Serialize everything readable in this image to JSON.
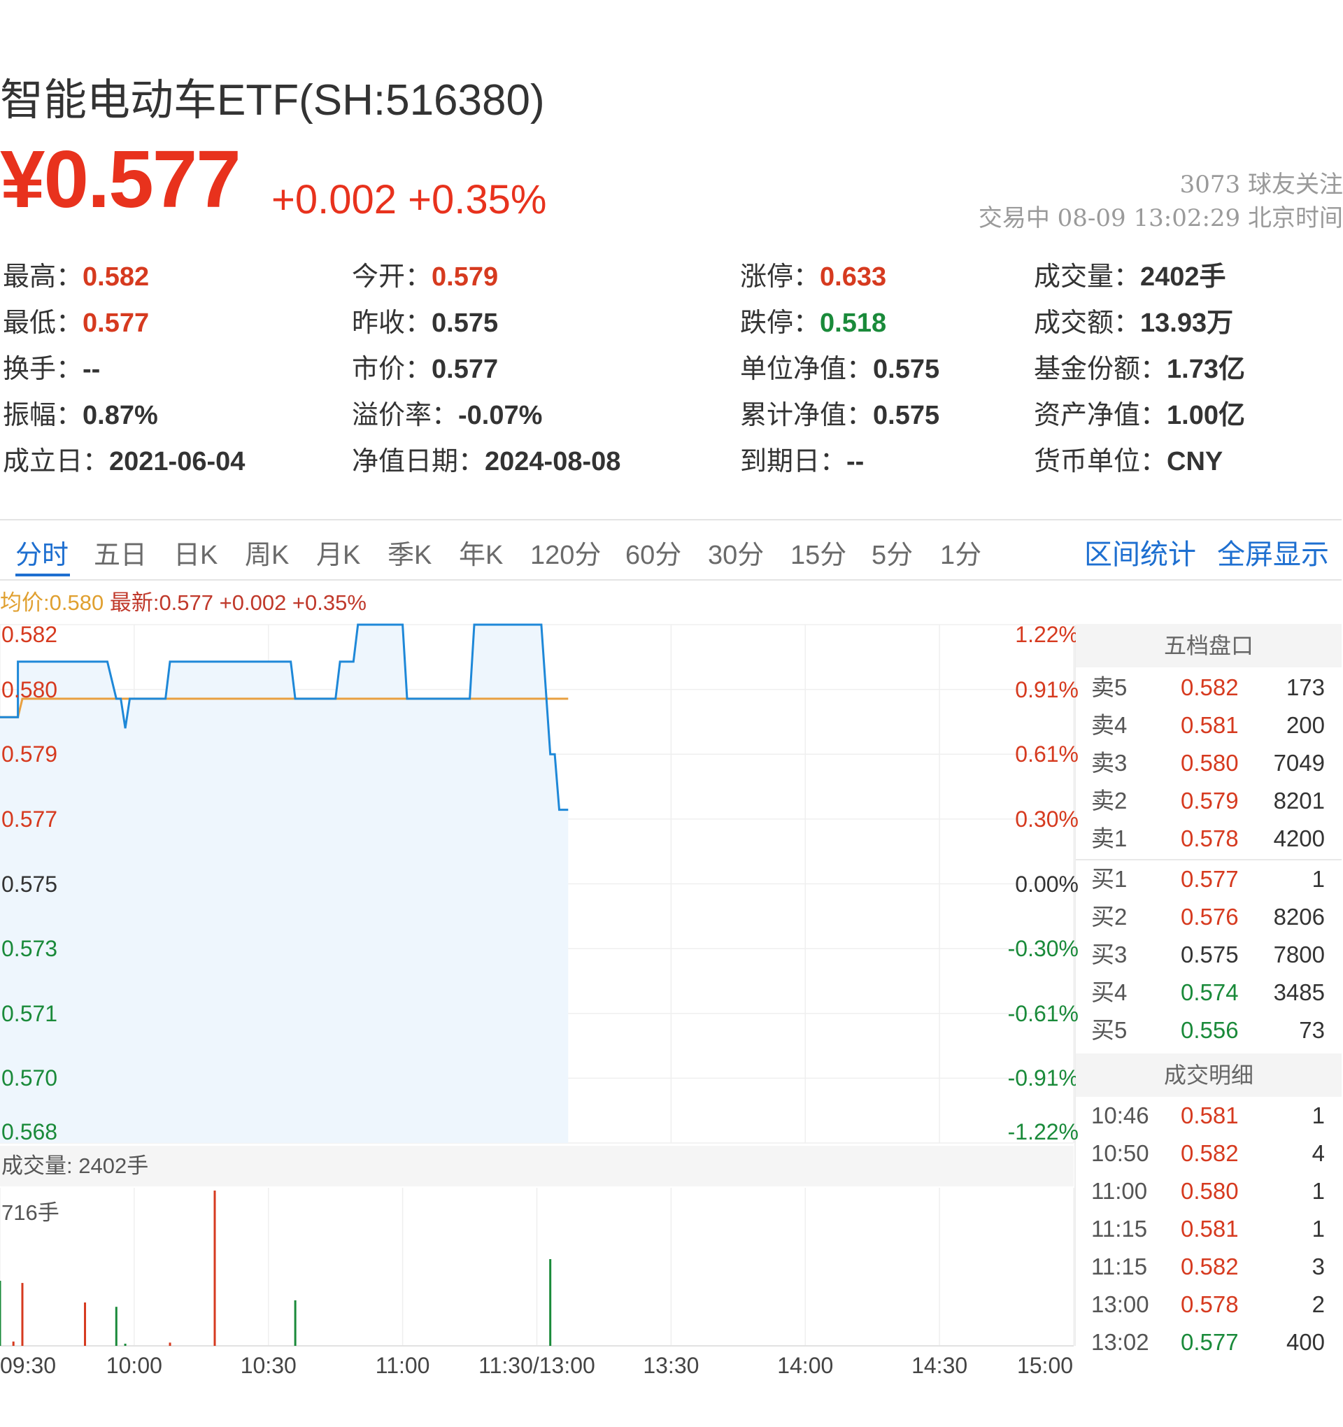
{
  "header": {
    "title": "智能电动车ETF(SH:516380)",
    "price": "¥0.577",
    "change": "+0.002 +0.35%",
    "followers": "3073 球友关注",
    "status": "交易中 08-09 13:02:29 北京时间"
  },
  "stats": [
    {
      "label": "最高：",
      "value": "0.582",
      "color": "red"
    },
    {
      "label": "今开：",
      "value": "0.579",
      "color": "red"
    },
    {
      "label": "涨停：",
      "value": "0.633",
      "color": "red"
    },
    {
      "label": "成交量：",
      "value": "2402手",
      "color": "dark"
    },
    {
      "label": "最低：",
      "value": "0.577",
      "color": "red"
    },
    {
      "label": "昨收：",
      "value": "0.575",
      "color": "dark"
    },
    {
      "label": "跌停：",
      "value": "0.518",
      "color": "green"
    },
    {
      "label": "成交额：",
      "value": "13.93万",
      "color": "dark"
    },
    {
      "label": "换手：",
      "value": "--",
      "color": "dark"
    },
    {
      "label": "市价：",
      "value": "0.577",
      "color": "dark"
    },
    {
      "label": "单位净值：",
      "value": "0.575",
      "color": "dark"
    },
    {
      "label": "基金份额：",
      "value": "1.73亿",
      "color": "dark"
    },
    {
      "label": "振幅：",
      "value": "0.87%",
      "color": "dark"
    },
    {
      "label": "溢价率：",
      "value": "-0.07%",
      "color": "dark"
    },
    {
      "label": "累计净值：",
      "value": "0.575",
      "color": "dark"
    },
    {
      "label": "资产净值：",
      "value": "1.00亿",
      "color": "dark"
    },
    {
      "label": "成立日：",
      "value": "2021-06-04",
      "color": "dark"
    },
    {
      "label": "净值日期：",
      "value": "2024-08-08",
      "color": "dark"
    },
    {
      "label": "到期日：",
      "value": "--",
      "color": "dark"
    },
    {
      "label": "货币单位：",
      "value": "CNY",
      "color": "dark"
    }
  ],
  "tabs": [
    "分时",
    "五日",
    "日K",
    "周K",
    "月K",
    "季K",
    "年K",
    "120分",
    "60分",
    "30分",
    "15分",
    "5分",
    "1分"
  ],
  "active_tab": "分时",
  "actions": [
    "区间统计",
    "全屏显示"
  ],
  "legend": {
    "avg": "均价:0.580",
    "latest": "最新:0.577  +0.002  +0.35%"
  },
  "colors": {
    "up": "#d63a1f",
    "down": "#1a8a3a",
    "price_line": "#1e88d8",
    "avg_line": "#e8a040",
    "accent": "#1e6fd0"
  },
  "chart_data": {
    "type": "line",
    "y_left_labels": [
      "0.582",
      "0.580",
      "0.579",
      "0.577",
      "0.575",
      "0.573",
      "0.571",
      "0.570",
      "0.568"
    ],
    "y_right_labels": [
      "1.22%",
      "0.91%",
      "0.61%",
      "0.30%",
      "0.00%",
      "-0.30%",
      "-0.61%",
      "-0.91%",
      "-1.22%"
    ],
    "ylim": [
      0.568,
      0.582
    ],
    "prev_close": 0.575,
    "x_labels": [
      "09:30",
      "10:00",
      "10:30",
      "11:00",
      "11:30/13:00",
      "13:30",
      "14:00",
      "14:30",
      "15:00"
    ],
    "total_minutes": 240,
    "series": [
      {
        "kind": "price",
        "points": [
          [
            0,
            0.5795
          ],
          [
            4,
            0.5795
          ],
          [
            4,
            0.581
          ],
          [
            24,
            0.581
          ],
          [
            26,
            0.58
          ],
          [
            27,
            0.58
          ],
          [
            28,
            0.5792
          ],
          [
            29,
            0.58
          ],
          [
            37,
            0.58
          ],
          [
            38,
            0.581
          ],
          [
            65,
            0.581
          ],
          [
            66,
            0.58
          ],
          [
            75,
            0.58
          ],
          [
            76,
            0.581
          ],
          [
            79,
            0.581
          ],
          [
            80,
            0.582
          ],
          [
            90,
            0.582
          ],
          [
            91,
            0.58
          ],
          [
            105,
            0.58
          ],
          [
            106,
            0.582
          ],
          [
            121,
            0.582
          ],
          [
            123,
            0.5785
          ],
          [
            124,
            0.5785
          ],
          [
            125,
            0.577
          ],
          [
            127,
            0.577
          ]
        ]
      },
      {
        "kind": "avg",
        "points": [
          [
            0,
            0.5795
          ],
          [
            4,
            0.5795
          ],
          [
            5,
            0.58
          ],
          [
            47,
            0.58
          ],
          [
            48,
            0.58
          ],
          [
            127,
            0.58
          ]
        ]
      }
    ],
    "volume_header": "成交量: 2402手",
    "volume_max_label": "716手",
    "volume_max": 716,
    "volume": [
      {
        "t": 0,
        "v": 300,
        "dir": "down"
      },
      {
        "t": 3,
        "v": 20,
        "dir": "up"
      },
      {
        "t": 5,
        "v": 290,
        "dir": "up"
      },
      {
        "t": 19,
        "v": 200,
        "dir": "up"
      },
      {
        "t": 26,
        "v": 180,
        "dir": "down"
      },
      {
        "t": 28,
        "v": 10,
        "dir": "down"
      },
      {
        "t": 38,
        "v": 15,
        "dir": "up"
      },
      {
        "t": 48,
        "v": 716,
        "dir": "up"
      },
      {
        "t": 66,
        "v": 210,
        "dir": "down"
      },
      {
        "t": 123,
        "v": 400,
        "dir": "down"
      }
    ]
  },
  "order_book": {
    "title": "五档盘口",
    "asks": [
      {
        "label": "卖5",
        "price": "0.582",
        "vol": "173",
        "color": "red"
      },
      {
        "label": "卖4",
        "price": "0.581",
        "vol": "200",
        "color": "red"
      },
      {
        "label": "卖3",
        "price": "0.580",
        "vol": "7049",
        "color": "red"
      },
      {
        "label": "卖2",
        "price": "0.579",
        "vol": "8201",
        "color": "red"
      },
      {
        "label": "卖1",
        "price": "0.578",
        "vol": "4200",
        "color": "red"
      }
    ],
    "bids": [
      {
        "label": "买1",
        "price": "0.577",
        "vol": "1",
        "color": "red"
      },
      {
        "label": "买2",
        "price": "0.576",
        "vol": "8206",
        "color": "red"
      },
      {
        "label": "买3",
        "price": "0.575",
        "vol": "7800",
        "color": "dark"
      },
      {
        "label": "买4",
        "price": "0.574",
        "vol": "3485",
        "color": "green"
      },
      {
        "label": "买5",
        "price": "0.556",
        "vol": "73",
        "color": "green"
      }
    ]
  },
  "trades": {
    "title": "成交明细",
    "rows": [
      {
        "time": "10:46",
        "price": "0.581",
        "vol": "1",
        "color": "red"
      },
      {
        "time": "10:50",
        "price": "0.582",
        "vol": "4",
        "color": "red"
      },
      {
        "time": "11:00",
        "price": "0.580",
        "vol": "1",
        "color": "red"
      },
      {
        "time": "11:15",
        "price": "0.581",
        "vol": "1",
        "color": "red"
      },
      {
        "time": "11:15",
        "price": "0.582",
        "vol": "3",
        "color": "red"
      },
      {
        "time": "13:00",
        "price": "0.578",
        "vol": "2",
        "color": "red"
      },
      {
        "time": "13:02",
        "price": "0.577",
        "vol": "400",
        "color": "green"
      }
    ]
  }
}
